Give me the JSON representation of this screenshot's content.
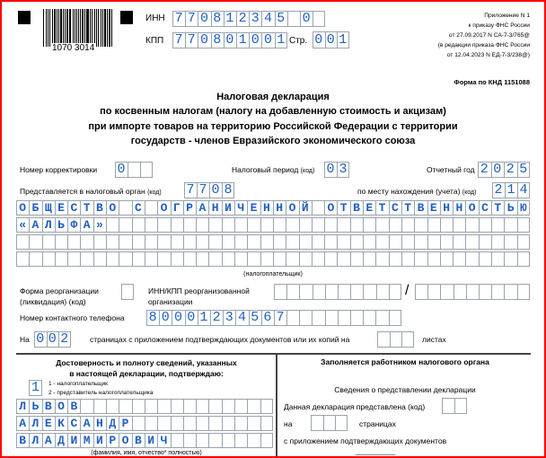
{
  "header": {
    "barcode_number": "1070 3014",
    "inn_label": "ИНН",
    "inn_value": "770812345 0",
    "kpp_label": "КПП",
    "kpp_value": "770801001",
    "page_label": "Стр.",
    "page_value": "001",
    "notes": [
      "Приложение N 1",
      "к приказу ФНС России",
      "от 27.09.2017 N СА-7-3/765@",
      "(в редакции приказа ФНС России",
      "от 12.04.2023 N ЕД-7-3/238@)"
    ],
    "knd": "Форма по КНД 1151088"
  },
  "title": [
    "Налоговая декларация",
    "по косвенным налогам (налогу на добавленную стоимость и акцизам)",
    "при импорте товаров на территорию Российской Федерации с территории",
    "государств - членов Евразийского экономического союза"
  ],
  "fields": {
    "correction_label": "Номер корректировки",
    "correction_value": "0",
    "period_label": "Налоговый период",
    "period_code": "(код)",
    "period_value": "03",
    "year_label": "Отчетный год",
    "year_value": "2025",
    "authority_label": "Представляется в налоговый орган",
    "authority_code": "(код)",
    "authority_value": "7708",
    "location_label": "по месту нахождения (учета)",
    "location_code": "(код)",
    "location_value": "214",
    "taxpayer_rows": [
      "ОБЩЕСТВО С ОГРАНИЧЕННОЙ ОТВЕТСТВЕННОСТЬЮ",
      "«АЛЬФА»",
      "",
      ""
    ],
    "taxpayer_caption": "(налогоплательщик)",
    "reorg_label_1": "Форма реорганизации",
    "reorg_label_2": "(ликвидация) (код)",
    "reorg_value": "",
    "reorg_inn_label_1": "ИНН/КПП реорганизованной",
    "reorg_inn_label_2": "организации",
    "reorg_inn_value": "",
    "reorg_slash": "/",
    "reorg_kpp_value": "",
    "phone_label": "Номер контактного телефона",
    "phone_value": "80001234567",
    "pages_prefix": "На",
    "pages_value": "002",
    "pages_text": "страницах с приложением подтверждающих документов или их копий на",
    "sheets_value": "",
    "sheets_suffix": "листах"
  },
  "confirm": {
    "heading_1": "Достоверность и полноту сведений, указанных",
    "heading_2": "в настоящей декларации, подтверждаю:",
    "signer_value": "1",
    "option_1": "1 - налогоплательщик",
    "option_2": "2 - представитель налогоплательщика",
    "name_rows": [
      "ЛЬВОВ",
      "АЛЕКСАНДР",
      "ВЛАДИМИРОВИЧ"
    ],
    "name_caption": "(фамилия, имя, отчество* полностью)"
  },
  "authority_section": {
    "heading": "Заполняется работником налогового органа",
    "subheading": "Сведения о представлении декларации",
    "submitted_label": "Данная декларация представлена (код)",
    "submitted_value": "",
    "on_label": "на",
    "pages_value": "",
    "pages_label": "страницах",
    "attachments_label": "с приложением подтверждающих документов"
  },
  "colors": {
    "value_text": "#1f5fbf",
    "border": "#ff0000"
  }
}
